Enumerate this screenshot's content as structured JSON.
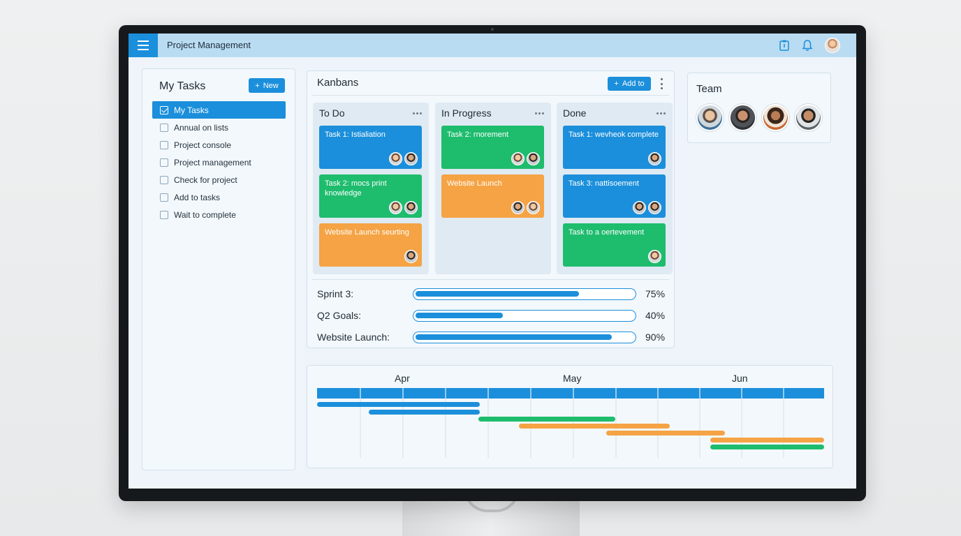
{
  "header": {
    "app_title": "Project Management",
    "icons": [
      "menu-icon",
      "clipboard-icon",
      "bell-icon",
      "avatar"
    ]
  },
  "my_tasks": {
    "title": "My Tasks",
    "new_button": "New",
    "items": [
      {
        "label": "My Tasks",
        "checked": true,
        "active": true
      },
      {
        "label": "Annual on lists",
        "checked": false
      },
      {
        "label": "Project console",
        "checked": false
      },
      {
        "label": "Project management",
        "checked": false
      },
      {
        "label": "Check for project",
        "checked": false
      },
      {
        "label": "Add to tasks",
        "checked": false
      },
      {
        "label": "Wait to complete",
        "checked": false
      }
    ]
  },
  "kanban": {
    "title": "Kanbans",
    "add_button": "Add to",
    "columns": [
      {
        "title": "To Do",
        "cards": [
          {
            "text": "Task 1: Istialiation",
            "color": "blue"
          },
          {
            "text": "Task 2: mocs print knowledge",
            "color": "green"
          },
          {
            "text": "Website Launch seurting",
            "color": "orange"
          }
        ]
      },
      {
        "title": "In Progress",
        "cards": [
          {
            "text": "Task 2: rnorement",
            "color": "green"
          },
          {
            "text": "Website Launch",
            "color": "orange"
          }
        ]
      },
      {
        "title": "Done",
        "cards": [
          {
            "text": "Task 1: wevheok complete",
            "color": "blue"
          },
          {
            "text": "Task 3: nattisoement",
            "color": "blue"
          },
          {
            "text": "Task to a oertevement",
            "color": "green"
          }
        ]
      }
    ]
  },
  "progress": [
    {
      "label": "Sprint 3:",
      "value": "75%",
      "fraction": 0.75
    },
    {
      "label": "Q2 Goals:",
      "value": "40%",
      "fraction": 0.4
    },
    {
      "label": "Website Launch:",
      "value": "90%",
      "fraction": 0.9
    }
  ],
  "team": {
    "title": "Team",
    "member_count": 4
  },
  "gantt": {
    "months": [
      "Apr",
      "May",
      "Jun"
    ],
    "colors": {
      "blue": "#1b8fdb",
      "green": "#1ebc6d",
      "orange": "#f5a344"
    }
  },
  "colors": {
    "accent": "#1b8fdb",
    "green": "#1ebc6d",
    "orange": "#f5a344",
    "topbar": "#b9dcf2"
  }
}
